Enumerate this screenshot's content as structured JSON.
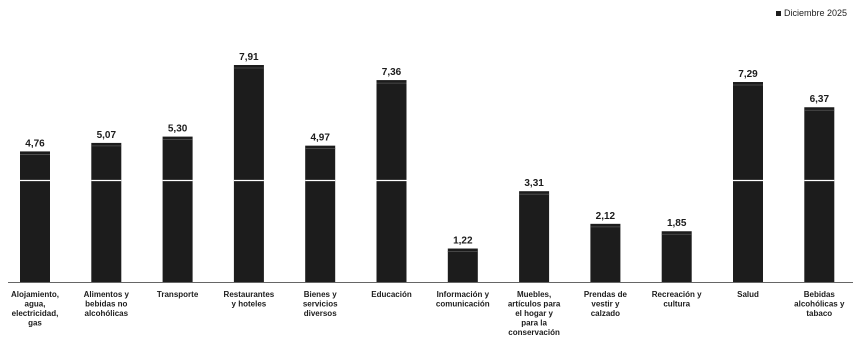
{
  "chart_data": {
    "type": "bar",
    "categories": [
      [
        "Alojamiento,",
        "agua,",
        "electricidad,",
        "gas"
      ],
      [
        "Alimentos y",
        "bebidas no",
        "alcohólicas"
      ],
      [
        "Transporte"
      ],
      [
        "Restaurantes",
        "y hoteles"
      ],
      [
        "Bienes y",
        "servicios",
        "diversos"
      ],
      [
        "Educación"
      ],
      [
        "Información y",
        "comunicación"
      ],
      [
        "Muebles,",
        "artículos para",
        "el hogar y",
        "para la",
        "conservación"
      ],
      [
        "Prendas de",
        "vestir y",
        "calzado"
      ],
      [
        "Recreación y",
        "cultura"
      ],
      [
        "Salud"
      ],
      [
        "Bebidas",
        "alcohólicas y",
        "tabaco"
      ]
    ],
    "value_labels": [
      "4,76",
      "5,07",
      "5,30",
      "7,91",
      "4,97",
      "7,36",
      "1,22",
      "3,31",
      "2,12",
      "1,85",
      "7,29",
      "6,37"
    ],
    "values": [
      4.76,
      5.07,
      5.3,
      7.91,
      4.97,
      7.36,
      1.22,
      3.31,
      2.12,
      1.85,
      7.29,
      6.37
    ],
    "series": [
      {
        "name": "Diciembre 2025"
      }
    ],
    "legend_position": "top-right",
    "ylim": [
      0,
      7.91
    ],
    "grid": false,
    "colors": {
      "bar": "#1c1c1c",
      "highlight_line": "#ffffff",
      "axis": "#666666"
    },
    "highlight_level": 3.7
  }
}
